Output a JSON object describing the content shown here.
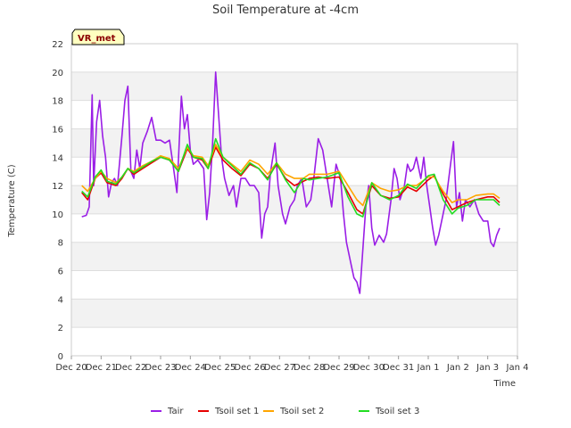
{
  "chart_data": {
    "type": "line",
    "title": "Soil Temperature at -4cm",
    "xlabel": "Time",
    "ylabel": "Temperature (C)",
    "ylim": [
      0,
      22
    ],
    "yticks": [
      0,
      2,
      4,
      6,
      8,
      10,
      12,
      14,
      16,
      18,
      20,
      22
    ],
    "xlim": [
      0,
      15
    ],
    "xticks": [
      {
        "label": "Dec 20",
        "day": 0
      },
      {
        "label": "Dec 21",
        "day": 1
      },
      {
        "label": "Dec 22",
        "day": 2
      },
      {
        "label": "Dec 23",
        "day": 3
      },
      {
        "label": "Dec 24",
        "day": 4
      },
      {
        "label": "Dec 25",
        "day": 5
      },
      {
        "label": "Dec 26",
        "day": 6
      },
      {
        "label": "Dec 27",
        "day": 7
      },
      {
        "label": "Dec 28",
        "day": 8
      },
      {
        "label": "Dec 29",
        "day": 9
      },
      {
        "label": "Dec 30",
        "day": 10
      },
      {
        "label": "Dec 31",
        "day": 11
      },
      {
        "label": "Jan 1",
        "day": 12
      },
      {
        "label": "Jan 2",
        "day": 13
      },
      {
        "label": "Jan 3",
        "day": 14
      },
      {
        "label": "Jan 4",
        "day": 15
      }
    ],
    "badge": "VR_met",
    "series": [
      {
        "name": "Tair",
        "color": "#9a1ee6",
        "points": [
          [
            0.35,
            9.8
          ],
          [
            0.5,
            9.9
          ],
          [
            0.6,
            10.5
          ],
          [
            0.7,
            18.4
          ],
          [
            0.75,
            12.0
          ],
          [
            0.85,
            16.5
          ],
          [
            0.95,
            18.0
          ],
          [
            1.05,
            15.5
          ],
          [
            1.15,
            14.0
          ],
          [
            1.25,
            11.2
          ],
          [
            1.35,
            12.2
          ],
          [
            1.45,
            12.5
          ],
          [
            1.55,
            12.0
          ],
          [
            1.7,
            15.5
          ],
          [
            1.8,
            18.0
          ],
          [
            1.9,
            19.0
          ],
          [
            2.0,
            13.0
          ],
          [
            2.1,
            12.5
          ],
          [
            2.2,
            14.5
          ],
          [
            2.3,
            13.2
          ],
          [
            2.4,
            15.0
          ],
          [
            2.55,
            15.8
          ],
          [
            2.7,
            16.8
          ],
          [
            2.85,
            15.2
          ],
          [
            3.0,
            15.2
          ],
          [
            3.15,
            15.0
          ],
          [
            3.3,
            15.2
          ],
          [
            3.45,
            13.0
          ],
          [
            3.55,
            11.5
          ],
          [
            3.7,
            18.3
          ],
          [
            3.8,
            16.0
          ],
          [
            3.9,
            17.0
          ],
          [
            4.0,
            14.5
          ],
          [
            4.1,
            13.5
          ],
          [
            4.25,
            13.8
          ],
          [
            4.45,
            13.2
          ],
          [
            4.55,
            9.6
          ],
          [
            4.65,
            11.5
          ],
          [
            4.75,
            15.0
          ],
          [
            4.85,
            20.0
          ],
          [
            4.95,
            17.0
          ],
          [
            5.05,
            14.0
          ],
          [
            5.15,
            12.5
          ],
          [
            5.3,
            11.3
          ],
          [
            5.45,
            12.0
          ],
          [
            5.55,
            10.5
          ],
          [
            5.7,
            12.5
          ],
          [
            5.85,
            12.5
          ],
          [
            6.0,
            12.0
          ],
          [
            6.15,
            12.0
          ],
          [
            6.3,
            11.5
          ],
          [
            6.4,
            8.3
          ],
          [
            6.5,
            10.0
          ],
          [
            6.6,
            10.5
          ],
          [
            6.7,
            13.0
          ],
          [
            6.85,
            15.0
          ],
          [
            6.95,
            12.0
          ],
          [
            7.1,
            10.0
          ],
          [
            7.2,
            9.3
          ],
          [
            7.35,
            10.5
          ],
          [
            7.5,
            11.0
          ],
          [
            7.6,
            12.0
          ],
          [
            7.75,
            12.5
          ],
          [
            7.9,
            10.5
          ],
          [
            8.05,
            11.0
          ],
          [
            8.15,
            12.5
          ],
          [
            8.3,
            15.3
          ],
          [
            8.45,
            14.5
          ],
          [
            8.6,
            12.5
          ],
          [
            8.75,
            10.5
          ],
          [
            8.9,
            13.5
          ],
          [
            9.05,
            12.5
          ],
          [
            9.15,
            10.0
          ],
          [
            9.25,
            8.0
          ],
          [
            9.4,
            6.5
          ],
          [
            9.5,
            5.5
          ],
          [
            9.6,
            5.2
          ],
          [
            9.7,
            4.4
          ],
          [
            9.8,
            7.5
          ],
          [
            9.9,
            10.5
          ],
          [
            10.0,
            12.0
          ],
          [
            10.1,
            9.0
          ],
          [
            10.2,
            7.8
          ],
          [
            10.35,
            8.5
          ],
          [
            10.5,
            8.0
          ],
          [
            10.6,
            8.6
          ],
          [
            10.75,
            11.0
          ],
          [
            10.85,
            13.2
          ],
          [
            10.95,
            12.5
          ],
          [
            11.05,
            11.0
          ],
          [
            11.2,
            12.0
          ],
          [
            11.3,
            13.5
          ],
          [
            11.4,
            13.0
          ],
          [
            11.5,
            13.2
          ],
          [
            11.6,
            14.0
          ],
          [
            11.75,
            12.5
          ],
          [
            11.85,
            14.0
          ],
          [
            11.95,
            12.0
          ],
          [
            12.05,
            10.5
          ],
          [
            12.15,
            9.0
          ],
          [
            12.25,
            7.8
          ],
          [
            12.35,
            8.5
          ],
          [
            12.45,
            9.5
          ],
          [
            12.6,
            11.0
          ],
          [
            12.75,
            13.5
          ],
          [
            12.85,
            15.1
          ],
          [
            12.95,
            10.5
          ],
          [
            13.05,
            11.5
          ],
          [
            13.15,
            9.5
          ],
          [
            13.25,
            11.0
          ],
          [
            13.4,
            10.5
          ],
          [
            13.55,
            11.0
          ],
          [
            13.7,
            10.0
          ],
          [
            13.85,
            9.5
          ],
          [
            14.0,
            9.5
          ],
          [
            14.1,
            8.0
          ],
          [
            14.2,
            7.7
          ],
          [
            14.3,
            8.5
          ],
          [
            14.4,
            9.0
          ]
        ]
      },
      {
        "name": "Tsoil set 1",
        "color": "#e60000",
        "points": [
          [
            0.35,
            11.5
          ],
          [
            0.55,
            11.0
          ],
          [
            0.8,
            12.5
          ],
          [
            1.0,
            12.9
          ],
          [
            1.2,
            12.2
          ],
          [
            1.5,
            12.0
          ],
          [
            1.7,
            12.5
          ],
          [
            1.9,
            13.2
          ],
          [
            2.1,
            12.8
          ],
          [
            2.4,
            13.2
          ],
          [
            2.7,
            13.6
          ],
          [
            3.0,
            14.0
          ],
          [
            3.3,
            13.8
          ],
          [
            3.6,
            13.0
          ],
          [
            3.9,
            14.6
          ],
          [
            4.1,
            14.0
          ],
          [
            4.4,
            13.8
          ],
          [
            4.6,
            13.2
          ],
          [
            4.85,
            14.7
          ],
          [
            5.1,
            13.8
          ],
          [
            5.4,
            13.2
          ],
          [
            5.7,
            12.7
          ],
          [
            6.0,
            13.5
          ],
          [
            6.3,
            13.2
          ],
          [
            6.6,
            12.5
          ],
          [
            6.9,
            13.5
          ],
          [
            7.2,
            12.5
          ],
          [
            7.5,
            12.0
          ],
          [
            7.8,
            12.3
          ],
          [
            8.0,
            12.5
          ],
          [
            8.3,
            12.6
          ],
          [
            8.6,
            12.5
          ],
          [
            9.0,
            12.6
          ],
          [
            9.3,
            11.5
          ],
          [
            9.6,
            10.3
          ],
          [
            9.8,
            10.0
          ],
          [
            10.1,
            12.0
          ],
          [
            10.4,
            11.3
          ],
          [
            10.7,
            11.1
          ],
          [
            11.0,
            11.2
          ],
          [
            11.3,
            11.9
          ],
          [
            11.6,
            11.6
          ],
          [
            12.0,
            12.4
          ],
          [
            12.2,
            12.7
          ],
          [
            12.5,
            11.4
          ],
          [
            12.8,
            10.3
          ],
          [
            13.0,
            10.5
          ],
          [
            13.3,
            10.8
          ],
          [
            13.6,
            11.0
          ],
          [
            14.0,
            11.2
          ],
          [
            14.2,
            11.2
          ],
          [
            14.4,
            10.8
          ]
        ]
      },
      {
        "name": "Tsoil set 2",
        "color": "#ffa500",
        "points": [
          [
            0.35,
            12.0
          ],
          [
            0.55,
            11.6
          ],
          [
            0.8,
            12.5
          ],
          [
            1.0,
            13.0
          ],
          [
            1.2,
            12.5
          ],
          [
            1.5,
            12.2
          ],
          [
            1.7,
            12.6
          ],
          [
            1.9,
            13.2
          ],
          [
            2.1,
            13.0
          ],
          [
            2.4,
            13.4
          ],
          [
            2.7,
            13.7
          ],
          [
            3.0,
            14.1
          ],
          [
            3.3,
            13.9
          ],
          [
            3.6,
            13.2
          ],
          [
            3.9,
            14.7
          ],
          [
            4.1,
            14.1
          ],
          [
            4.4,
            14.0
          ],
          [
            4.6,
            13.4
          ],
          [
            4.85,
            14.9
          ],
          [
            5.1,
            14.0
          ],
          [
            5.4,
            13.5
          ],
          [
            5.7,
            13.0
          ],
          [
            6.0,
            13.8
          ],
          [
            6.3,
            13.5
          ],
          [
            6.6,
            12.8
          ],
          [
            6.9,
            13.6
          ],
          [
            7.2,
            12.8
          ],
          [
            7.5,
            12.5
          ],
          [
            7.8,
            12.5
          ],
          [
            8.0,
            12.8
          ],
          [
            8.3,
            12.8
          ],
          [
            8.6,
            12.8
          ],
          [
            9.0,
            13.0
          ],
          [
            9.3,
            12.0
          ],
          [
            9.6,
            11.0
          ],
          [
            9.8,
            10.6
          ],
          [
            10.1,
            12.2
          ],
          [
            10.4,
            11.8
          ],
          [
            10.7,
            11.6
          ],
          [
            11.0,
            11.7
          ],
          [
            11.3,
            12.0
          ],
          [
            11.6,
            12.0
          ],
          [
            12.0,
            12.6
          ],
          [
            12.2,
            12.6
          ],
          [
            12.5,
            11.6
          ],
          [
            12.8,
            10.8
          ],
          [
            13.0,
            11.0
          ],
          [
            13.3,
            11.0
          ],
          [
            13.6,
            11.3
          ],
          [
            14.0,
            11.4
          ],
          [
            14.2,
            11.4
          ],
          [
            14.4,
            11.1
          ]
        ]
      },
      {
        "name": "Tsoil set 3",
        "color": "#22dd22",
        "points": [
          [
            0.35,
            11.6
          ],
          [
            0.55,
            11.2
          ],
          [
            0.8,
            12.6
          ],
          [
            1.0,
            13.1
          ],
          [
            1.2,
            12.3
          ],
          [
            1.5,
            12.1
          ],
          [
            1.7,
            12.6
          ],
          [
            1.9,
            13.2
          ],
          [
            2.1,
            12.9
          ],
          [
            2.4,
            13.3
          ],
          [
            2.7,
            13.7
          ],
          [
            3.0,
            14.0
          ],
          [
            3.3,
            13.8
          ],
          [
            3.6,
            13.0
          ],
          [
            3.9,
            14.9
          ],
          [
            4.1,
            14.0
          ],
          [
            4.4,
            13.9
          ],
          [
            4.6,
            13.2
          ],
          [
            4.85,
            15.3
          ],
          [
            5.1,
            14.0
          ],
          [
            5.4,
            13.4
          ],
          [
            5.7,
            12.8
          ],
          [
            6.0,
            13.6
          ],
          [
            6.3,
            13.2
          ],
          [
            6.6,
            12.4
          ],
          [
            6.9,
            13.6
          ],
          [
            7.2,
            12.4
          ],
          [
            7.5,
            11.5
          ],
          [
            7.8,
            12.5
          ],
          [
            8.0,
            12.4
          ],
          [
            8.3,
            12.5
          ],
          [
            8.6,
            12.6
          ],
          [
            9.0,
            12.9
          ],
          [
            9.3,
            11.2
          ],
          [
            9.6,
            10.0
          ],
          [
            9.8,
            9.8
          ],
          [
            10.1,
            12.2
          ],
          [
            10.4,
            11.3
          ],
          [
            10.7,
            11.0
          ],
          [
            11.0,
            11.3
          ],
          [
            11.3,
            12.1
          ],
          [
            11.6,
            11.8
          ],
          [
            12.0,
            12.7
          ],
          [
            12.2,
            12.8
          ],
          [
            12.5,
            11.0
          ],
          [
            12.8,
            10.0
          ],
          [
            13.0,
            10.4
          ],
          [
            13.3,
            10.6
          ],
          [
            13.6,
            11.0
          ],
          [
            14.0,
            11.0
          ],
          [
            14.2,
            11.0
          ],
          [
            14.4,
            10.6
          ]
        ]
      }
    ]
  }
}
